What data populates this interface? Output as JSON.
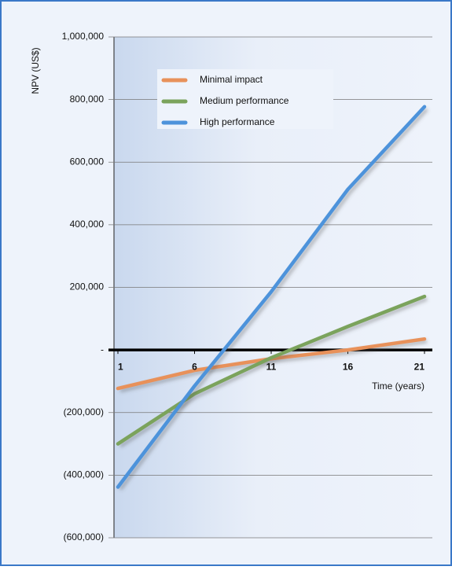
{
  "chart_data": {
    "type": "line",
    "y_label": "NPV (US$)",
    "x_label": "Time (years)",
    "x": [
      1,
      6,
      11,
      16,
      21
    ],
    "xlim": [
      1,
      21
    ],
    "xticks": [
      1,
      6,
      11,
      16,
      21
    ],
    "ylim": [
      -600000,
      1000000
    ],
    "yticks": [
      {
        "value": -600000,
        "label": "(600,000)"
      },
      {
        "value": -400000,
        "label": "(400,000)"
      },
      {
        "value": -200000,
        "label": "(200,000)"
      },
      {
        "value": 0,
        "label": "-"
      },
      {
        "value": 200000,
        "label": "200,000"
      },
      {
        "value": 400000,
        "label": "400,000"
      },
      {
        "value": 600000,
        "label": "600,000"
      },
      {
        "value": 800000,
        "label": "800,000"
      },
      {
        "value": 1000000,
        "label": "1,000,000"
      }
    ],
    "grid": true,
    "series": [
      {
        "name": "Minimal impact",
        "color": "#e8915a",
        "values": [
          -123000,
          -65000,
          -28000,
          0,
          35000
        ]
      },
      {
        "name": "Medium performance",
        "color": "#7ba35c",
        "values": [
          -300000,
          -140000,
          -25000,
          75000,
          171000
        ]
      },
      {
        "name": "High performance",
        "color": "#4d93db",
        "values": [
          -438000,
          -115000,
          186000,
          513000,
          777000
        ]
      }
    ]
  }
}
